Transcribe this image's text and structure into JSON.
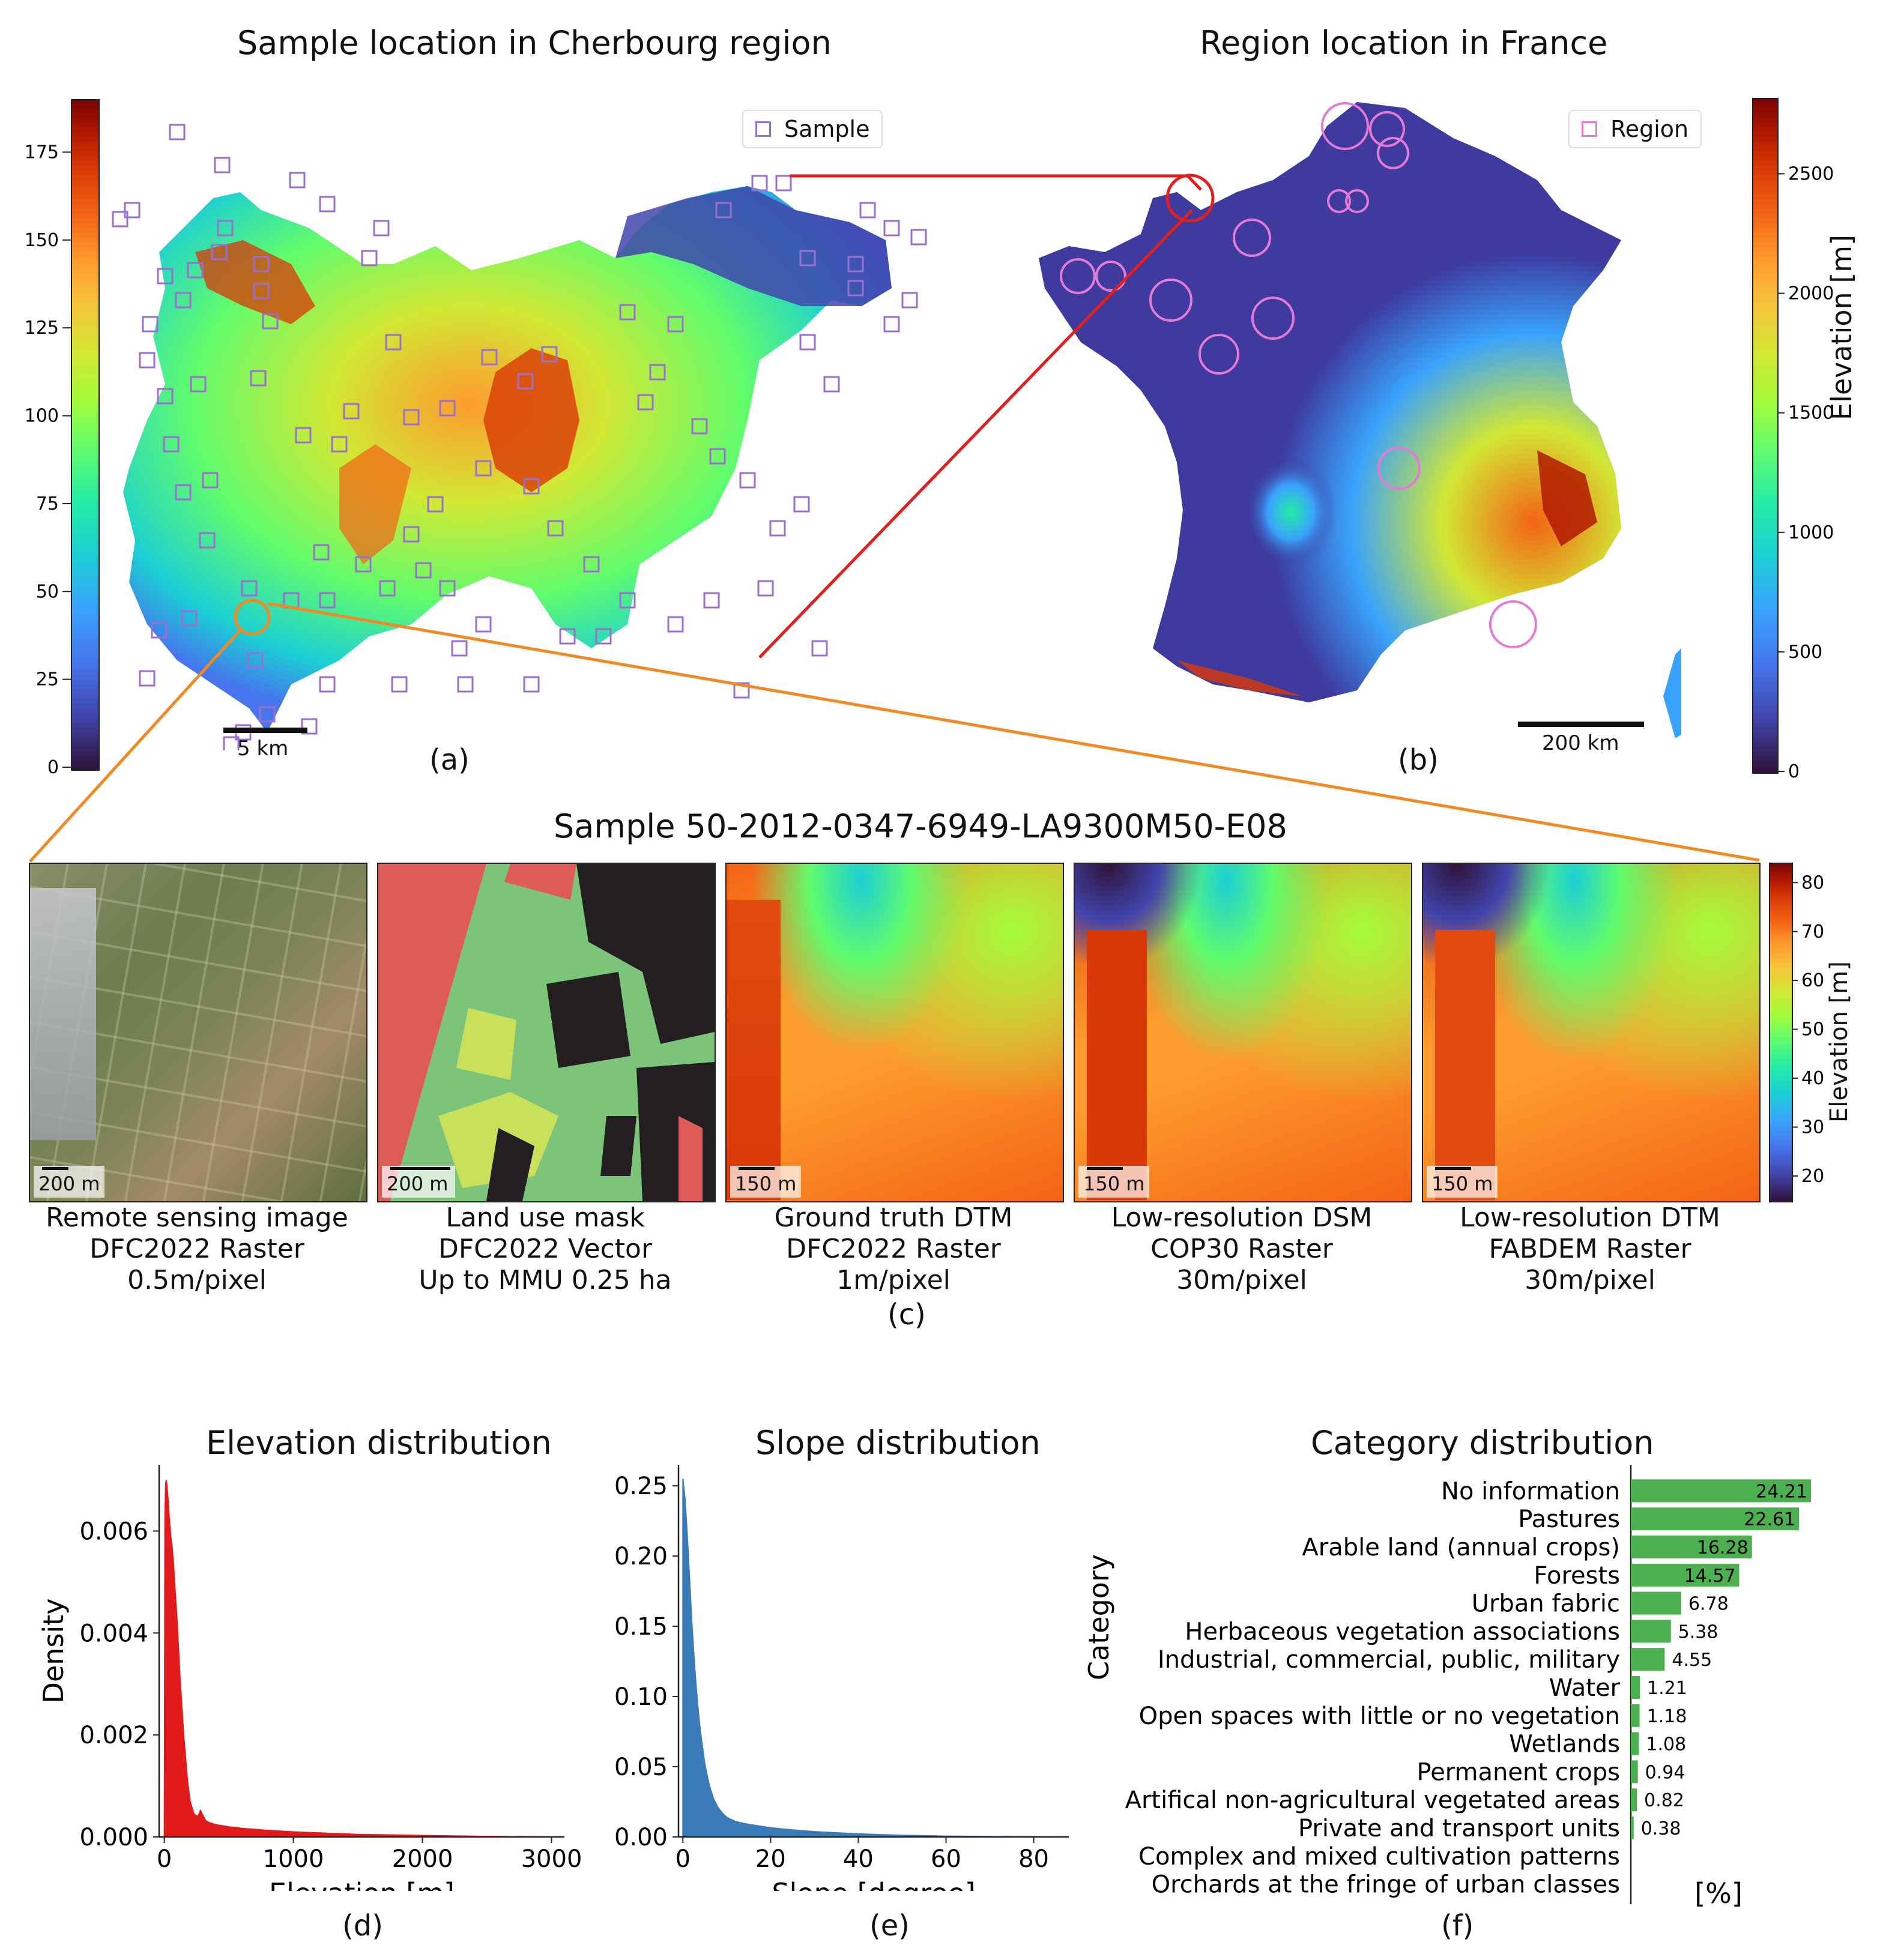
{
  "panel_a": {
    "title": "Sample location in Cherbourg region",
    "legend": "Sample",
    "scale": "5 km",
    "caption": "(a)",
    "colorbar_ticks": [
      "0",
      "25",
      "50",
      "75",
      "100",
      "125",
      "150",
      "175"
    ]
  },
  "panel_b": {
    "title": "Region location in France",
    "legend": "Region",
    "scale": "200 km",
    "caption": "(b)",
    "colorbar_ticks": [
      "0",
      "500",
      "1000",
      "1500",
      "2000",
      "2500"
    ],
    "colorbar_label": "Elevation [m]"
  },
  "panel_c": {
    "title": "Sample 50-2012-0347-6949-LA9300M50-E08",
    "caption": "(c)",
    "colorbar_ticks": [
      "20",
      "30",
      "40",
      "50",
      "60",
      "70",
      "80"
    ],
    "colorbar_label": "Elevation [m]",
    "images": [
      {
        "scale": "200 m",
        "line1": "Remote sensing image",
        "line2": "DFC2022 Raster",
        "line3": "0.5m/pixel"
      },
      {
        "scale": "200 m",
        "line1": "Land use mask",
        "line2": "DFC2022 Vector",
        "line3": "Up to MMU 0.25 ha"
      },
      {
        "scale": "150 m",
        "line1": "Ground truth DTM",
        "line2": "DFC2022 Raster",
        "line3": "1m/pixel"
      },
      {
        "scale": "150 m",
        "line1": "Low-resolution DSM",
        "line2": "COP30 Raster",
        "line3": "30m/pixel"
      },
      {
        "scale": "150 m",
        "line1": "Low-resolution DTM",
        "line2": "FABDEM Raster",
        "line3": "30m/pixel"
      }
    ]
  },
  "chart_data": [
    {
      "type": "area",
      "title": "Elevation distribution",
      "xlabel": "Elevation [m]",
      "ylabel": "Density",
      "caption": "(d)",
      "color": "#e31a1c",
      "xlim": [
        -40,
        3100
      ],
      "ylim": [
        0,
        0.0073
      ],
      "xticks": [
        0,
        1000,
        2000,
        3000
      ],
      "xtick_labels": [
        "0",
        "1000",
        "2000",
        "3000"
      ],
      "yticks": [
        0,
        0.002,
        0.004,
        0.006
      ],
      "ytick_labels": [
        "0.000",
        "0.002",
        "0.004",
        "0.006"
      ],
      "x": [
        0,
        5,
        10,
        15,
        20,
        30,
        40,
        50,
        60,
        70,
        80,
        100,
        120,
        150,
        180,
        200,
        230,
        260,
        280,
        300,
        320,
        350,
        400,
        500,
        600,
        800,
        1000,
        1200,
        1500,
        2000,
        2500,
        3000
      ],
      "y": [
        0.0,
        0.0063,
        0.0069,
        0.007,
        0.0069,
        0.0066,
        0.0062,
        0.0059,
        0.0057,
        0.0054,
        0.005,
        0.0042,
        0.0032,
        0.002,
        0.0011,
        0.0007,
        0.00045,
        0.0004,
        0.00052,
        0.00042,
        0.00032,
        0.00028,
        0.00024,
        0.0002,
        0.00017,
        0.00013,
        0.0001,
        8e-05,
        5e-05,
        3e-05,
        1e-05,
        0.0
      ]
    },
    {
      "type": "area",
      "title": "Slope distribution",
      "xlabel": "Slope [degree]",
      "ylabel": "",
      "caption": "(e)",
      "color": "#3a7ab8",
      "xlim": [
        -1,
        88
      ],
      "ylim": [
        0,
        0.265
      ],
      "xticks": [
        0,
        20,
        40,
        60,
        80
      ],
      "xtick_labels": [
        "0",
        "20",
        "40",
        "60",
        "80"
      ],
      "yticks": [
        0,
        0.05,
        0.1,
        0.15,
        0.2,
        0.25
      ],
      "ytick_labels": [
        "0.00",
        "0.05",
        "0.10",
        "0.15",
        "0.20",
        "0.25"
      ],
      "x": [
        0,
        0.5,
        1,
        1.5,
        2,
        2.5,
        3,
        3.5,
        4,
        5,
        6,
        7,
        8,
        9,
        10,
        12,
        14,
        16,
        20,
        25,
        30,
        40,
        50,
        60,
        70,
        80,
        85
      ],
      "y": [
        0.255,
        0.24,
        0.215,
        0.185,
        0.155,
        0.13,
        0.108,
        0.09,
        0.075,
        0.052,
        0.037,
        0.027,
        0.021,
        0.017,
        0.014,
        0.011,
        0.0095,
        0.0085,
        0.0065,
        0.005,
        0.0038,
        0.0022,
        0.0012,
        0.0006,
        0.0003,
        0.0001,
        0.0
      ]
    },
    {
      "type": "bar",
      "orientation": "horizontal",
      "title": "Category distribution",
      "ylabel": "Category",
      "xlabel": "[%]",
      "caption": "(f)",
      "color": "#4caf50",
      "xlim": [
        0,
        27
      ],
      "categories": [
        "No information",
        "Pastures",
        "Arable land (annual crops)",
        "Forests",
        "Urban fabric",
        "Herbaceous vegetation associations",
        "Industrial, commercial, public, military",
        "Water",
        "Open spaces with little or no vegetation",
        "Wetlands",
        "Permanent crops",
        "Artifical non-agricultural vegetated areas",
        "Private and transport units",
        "Complex and mixed cultivation patterns",
        "Orchards at the fringe of urban classes"
      ],
      "values": [
        24.21,
        22.61,
        16.28,
        14.57,
        6.78,
        5.38,
        4.55,
        1.21,
        1.18,
        1.08,
        0.94,
        0.82,
        0.38,
        null,
        null
      ],
      "value_labels": [
        "24.21",
        "22.61",
        "16.28",
        "14.57",
        "6.78",
        "5.38",
        "4.55",
        "1.21",
        "1.18",
        "1.08",
        "0.94",
        "0.82",
        "0.38",
        "",
        ""
      ]
    }
  ]
}
